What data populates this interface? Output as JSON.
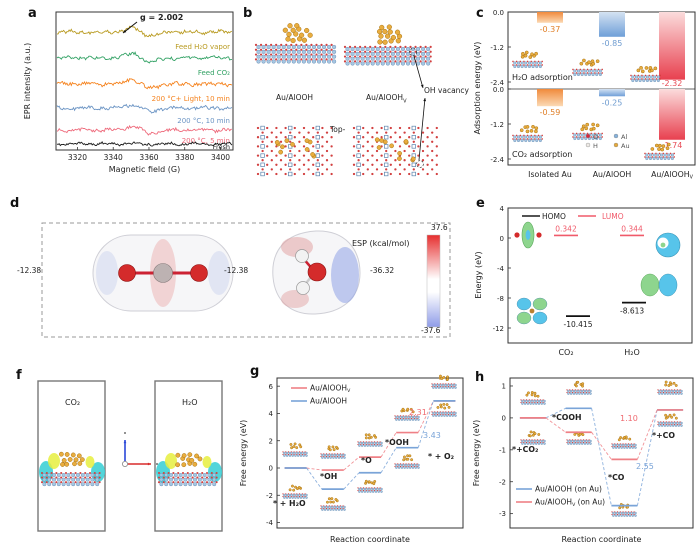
{
  "panels": {
    "a": {
      "label": "a"
    },
    "b": {
      "label": "b",
      "left_caption": "Au/AlOOH",
      "right_caption_base": "Au/AlOOH",
      "right_caption_sub": "V",
      "vacancy_label": "OH vacancy",
      "top_label": "Top-"
    },
    "c": {
      "label": "c"
    },
    "d": {
      "label": "d",
      "esp_title": "ESP  (kcal/mol)",
      "colorbar_max": "37.6",
      "colorbar_min": "-37.6",
      "co2_value_left": "-12.38",
      "co2_value_right": "-12.38",
      "h2o_value": "-36.32"
    },
    "e": {
      "label": "e"
    },
    "f": {
      "label": "f",
      "left_box_label": "CO₂",
      "right_box_label": "H₂O"
    },
    "g": {
      "label": "g"
    },
    "h": {
      "label": "h"
    }
  },
  "chart_data": [
    {
      "id": "a",
      "type": "line",
      "ylabel": "EPR intensity (a.u.)",
      "xlabel": "Magnetic field (G)",
      "x_ticks": [
        "3320",
        "3340",
        "3360",
        "3380",
        "3400"
      ],
      "xlim": [
        3308,
        3407
      ],
      "dip_center_G": 3356,
      "annotation": "g = 2.002",
      "series": [
        {
          "name": "Feed H₂O vapor",
          "color": "#b99b22"
        },
        {
          "name": "Feed CO₂",
          "color": "#33a265"
        },
        {
          "name": "200 °C+ Light, 10 min",
          "color": "#f5831f"
        },
        {
          "name": "200 °C, 10 min",
          "color": "#6b94c4"
        },
        {
          "name": "200 °C, 5 min",
          "color": "#ee6a7b"
        },
        {
          "name": "Fresh",
          "color": "#1a1a1a"
        }
      ]
    },
    {
      "id": "c",
      "type": "bar",
      "ylabel": "Adsorption energy (eV)",
      "y_ticks": [
        "0.0",
        "-1.2",
        "-2.4"
      ],
      "ylim": [
        0,
        -2.6
      ],
      "categories": [
        {
          "base": "Isolated Au"
        },
        {
          "base": "Au/AlOOH"
        },
        {
          "base": "Au/AlOOH",
          "sub": "V"
        }
      ],
      "bar_colors": [
        "#f08a3c",
        "#7aa4d8",
        "#e8404f"
      ],
      "subpanels": [
        {
          "title": "H₂O adsorption",
          "values": [
            -0.37,
            -0.85,
            -2.32
          ],
          "value_labels": [
            "-0.37",
            "-0.85",
            "-2.32"
          ]
        },
        {
          "title": "CO₂ adsorption",
          "values": [
            -0.59,
            -0.25,
            -1.74
          ],
          "value_labels": [
            "-0.59",
            "-0.25",
            "-1.74"
          ]
        }
      ],
      "legend": [
        {
          "label": "O",
          "color": "#d7263d"
        },
        {
          "label": "Al",
          "color": "#85b2dc"
        },
        {
          "label": "H",
          "color": "#eeeae6"
        },
        {
          "label": "Au",
          "color": "#e5a93c"
        }
      ]
    },
    {
      "id": "e",
      "type": "level",
      "ylabel": "Energy (eV)",
      "y_ticks": [
        "4",
        "0",
        "-4",
        "-8",
        "-12"
      ],
      "ylim": [
        4,
        -13
      ],
      "legend": [
        {
          "label": "HOMO",
          "color": "#1a1a1a"
        },
        {
          "label": "LUMO",
          "color": "#f05a6a"
        }
      ],
      "categories": [
        "CO₂",
        "H₂O"
      ],
      "levels": [
        {
          "molecule": "CO₂",
          "orbital": "LUMO",
          "value": 0.342,
          "label": "0.342"
        },
        {
          "molecule": "CO₂",
          "orbital": "HOMO",
          "value": -10.415,
          "label": "-10.415"
        },
        {
          "molecule": "H₂O",
          "orbital": "LUMO",
          "value": 0.344,
          "label": "0.344"
        },
        {
          "molecule": "H₂O",
          "orbital": "HOMO",
          "value": -8.613,
          "label": "-8.613"
        }
      ]
    },
    {
      "id": "g",
      "type": "step",
      "ylabel": "Free energy (eV)",
      "xlabel": "Reaction coordinate",
      "y_ticks": [
        "6",
        "4",
        "2",
        "0",
        "-2",
        "-4"
      ],
      "ylim": [
        6.6,
        -4.4
      ],
      "states": [
        "* + H₂O",
        "*OH",
        "*O",
        "*OOH",
        "* + O₂"
      ],
      "series": [
        {
          "name": {
            "base": "Au/AlOOH",
            "sub": "V"
          },
          "color": "#ef8086",
          "values": [
            0,
            -0.15,
            0.8,
            2.6,
            4.92
          ]
        },
        {
          "name": {
            "base": "Au/AlOOH"
          },
          "color": "#7aa4d8",
          "values": [
            0,
            -1.55,
            -0.35,
            1.49,
            4.92
          ]
        }
      ],
      "annotations": [
        {
          "text": "2.31",
          "color": "#ef6a70"
        },
        {
          "text": "3.43",
          "color": "#7aa4d8"
        }
      ]
    },
    {
      "id": "h",
      "type": "step",
      "ylabel": "Free energy (eV)",
      "xlabel": "Reaction coordinate",
      "y_ticks": [
        "1",
        "0",
        "-1",
        "-2",
        "-3"
      ],
      "ylim": [
        1.25,
        -3.45
      ],
      "states": [
        "*+CO₂",
        "*COOH",
        "*CO",
        "*+CO"
      ],
      "series": [
        {
          "name": {
            "base": "Au/AlOOH",
            "rest": " (on Au)"
          },
          "color": "#7aa4d8",
          "values": [
            0,
            0.3,
            -2.75,
            0.25
          ]
        },
        {
          "name": {
            "base": "Au/AlOOH",
            "sub": "V",
            "rest": " (on Au)"
          },
          "color": "#ef8086",
          "values": [
            0,
            -0.45,
            -1.3,
            0.25
          ]
        }
      ],
      "annotations": [
        {
          "text": "1.10",
          "color": "#ef6a70"
        },
        {
          "text": "2.55",
          "color": "#7aa4d8"
        }
      ]
    }
  ]
}
